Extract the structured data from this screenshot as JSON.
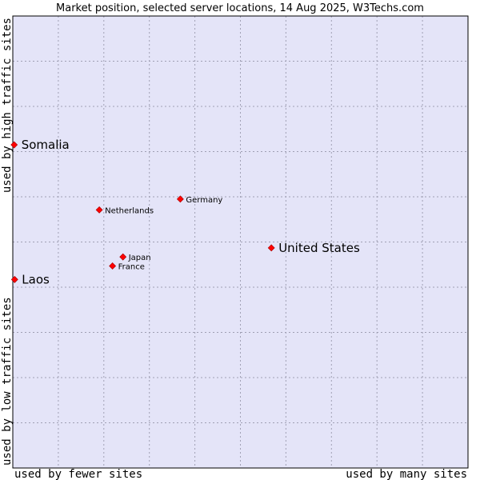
{
  "chart_data": {
    "type": "scatter",
    "title": "Market position, selected server locations, 14 Aug 2025, W3Techs.com",
    "xlabel_left": "used by fewer sites",
    "xlabel_right": "used by many sites",
    "ylabel_bottom": "used by low traffic sites",
    "ylabel_top": "used by high traffic sites",
    "xlim": [
      0,
      100
    ],
    "ylim": [
      0,
      100
    ],
    "grid": true,
    "points": [
      {
        "label": "Somalia",
        "x": 0.3,
        "y": 71.5,
        "size": "large",
        "label_side": "right"
      },
      {
        "label": "Germany",
        "x": 36.8,
        "y": 59.5,
        "size": "small",
        "label_side": "right"
      },
      {
        "label": "Netherlands",
        "x": 19.0,
        "y": 57.1,
        "size": "small",
        "label_side": "right"
      },
      {
        "label": "United States",
        "x": 56.8,
        "y": 48.7,
        "size": "large",
        "label_side": "right"
      },
      {
        "label": "Japan",
        "x": 24.2,
        "y": 46.7,
        "size": "small",
        "label_side": "right"
      },
      {
        "label": "France",
        "x": 21.9,
        "y": 44.7,
        "size": "small",
        "label_side": "right"
      },
      {
        "label": "Laos",
        "x": 0.4,
        "y": 41.7,
        "size": "large",
        "label_side": "right"
      }
    ]
  },
  "colors": {
    "plot_bg": "#e4e4f8",
    "point": "#ff0000",
    "point_stroke": "#a00000",
    "frame": "#000000"
  }
}
